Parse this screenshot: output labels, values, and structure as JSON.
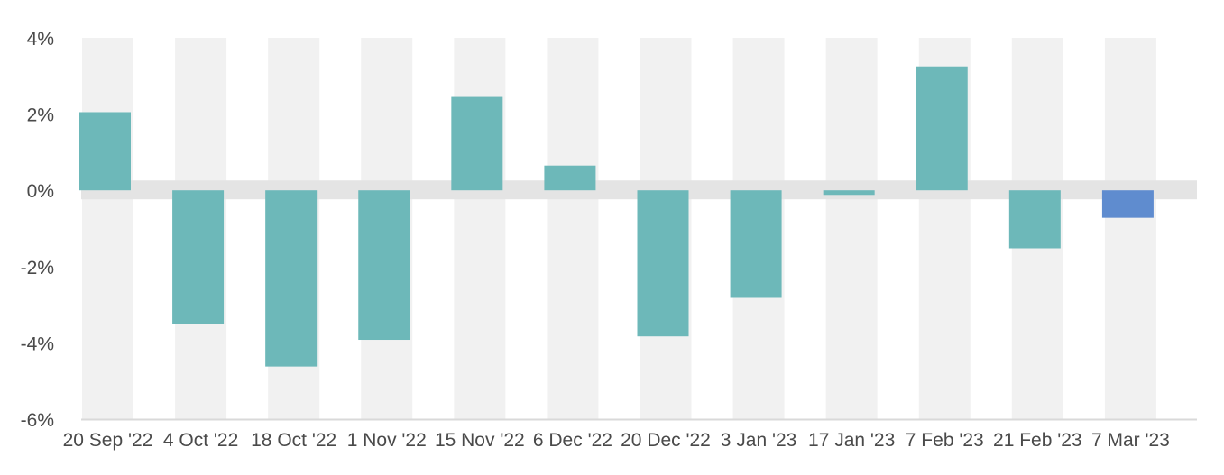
{
  "chart_data": {
    "type": "bar",
    "categories": [
      "20 Sep '22",
      "4 Oct '22",
      "18 Oct '22",
      "1 Nov '22",
      "15 Nov '22",
      "6 Dec '22",
      "20 Dec '22",
      "3 Jan '23",
      "17 Jan '23",
      "7 Feb '23",
      "21 Feb '23",
      "7 Mar '23"
    ],
    "values": [
      2.05,
      -3.5,
      -4.62,
      -3.92,
      2.45,
      0.65,
      -3.83,
      -2.82,
      -0.12,
      3.25,
      -1.52,
      -0.72
    ],
    "ylim": [
      -6,
      4
    ],
    "y_ticks": [
      4,
      2,
      0,
      -2,
      -4,
      -6
    ],
    "y_tick_labels": [
      "4%",
      "2%",
      "0%",
      "-2%",
      "-4%",
      "-6%"
    ],
    "xlabel": "",
    "ylabel": "",
    "grid": false,
    "colors": {
      "bar": "#6db8b9",
      "highlight_bar": "#5f8ccf",
      "column_band": "#f1f1f1",
      "zero_band": "#e4e4e4",
      "axis": "#d9d9d9",
      "text": "#4a4a4a"
    },
    "highlight_index": 11
  }
}
